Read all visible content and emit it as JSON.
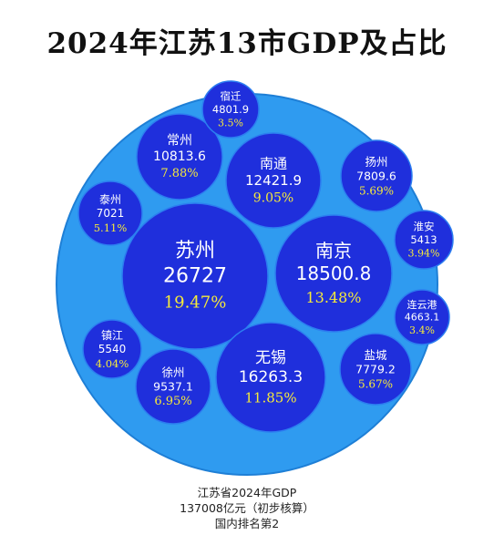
{
  "colors": {
    "outer_fill": "#2f9bf0",
    "outer_stroke": "#1e7fd6",
    "bubble_fill": "#1f2fdc",
    "bubble_stroke": "#2c7ef0",
    "label_text": "#ffffff",
    "percent_text": "#f6ea3a"
  },
  "chart_data": {
    "type": "bubble",
    "title": "2024年江苏13市GDP及占比",
    "series": [
      {
        "name": "苏州",
        "value": "26727",
        "share": "19.47%"
      },
      {
        "name": "南京",
        "value": "18500.8",
        "share": "13.48%"
      },
      {
        "name": "无锡",
        "value": "16263.3",
        "share": "11.85%"
      },
      {
        "name": "南通",
        "value": "12421.9",
        "share": "9.05%"
      },
      {
        "name": "常州",
        "value": "10813.6",
        "share": "7.88%"
      },
      {
        "name": "徐州",
        "value": "9537.1",
        "share": "6.95%"
      },
      {
        "name": "扬州",
        "value": "7809.6",
        "share": "5.69%"
      },
      {
        "name": "盐城",
        "value": "7779.2",
        "share": "5.67%"
      },
      {
        "name": "泰州",
        "value": "7021",
        "share": "5.11%"
      },
      {
        "name": "镇江",
        "value": "5540",
        "share": "4.04%"
      },
      {
        "name": "淮安",
        "value": "5413",
        "share": "3.94%"
      },
      {
        "name": "宿迁",
        "value": "4801.9",
        "share": "3.5%"
      },
      {
        "name": "连云港",
        "value": "4663.1",
        "share": "3.4%"
      }
    ]
  },
  "footer": {
    "line1": "江苏省2024年GDP",
    "line2": "137008亿元（初步核算）",
    "line3": "国内排名第2"
  }
}
